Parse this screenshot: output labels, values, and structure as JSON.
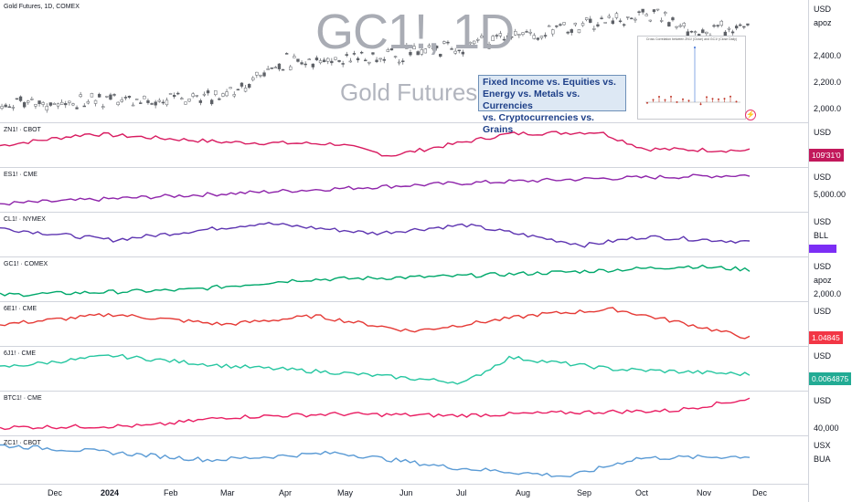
{
  "header": {
    "title": "Gold Futures, 1D, COMEX"
  },
  "watermark": {
    "symbol": "GC1!, 1D",
    "name": "Gold Futures"
  },
  "infobox": {
    "line1": "Fixed Income vs. Equities vs.",
    "line2": "Energy vs. Metals vs. Currencies",
    "line3": "vs. Cryptocurrencies vs. Grains"
  },
  "inset": {
    "title": "Cross Correlation between ZN1! (Close) and GC1! (Close Daily)"
  },
  "main_pane": {
    "currency": "USD",
    "unit": "apoz",
    "ticks": [
      "2,400.0",
      "2,200.0",
      "2,000.0"
    ]
  },
  "panes": [
    {
      "label": "ZN1! · CBOT",
      "currency": "USD",
      "price_tag": "109'31'0",
      "tag_color": "#c2185b",
      "line_color": "#d81b60"
    },
    {
      "label": "ES1! · CME",
      "currency": "USD",
      "tick": "5,000.00",
      "line_color": "#8e24aa"
    },
    {
      "label": "CL1! · NYMEX",
      "currency": "USD",
      "unit": "BLL",
      "line_color": "#5e35b1",
      "tag_color": "#7c2ef5"
    },
    {
      "label": "GC1! · COMEX",
      "currency": "USD",
      "unit": "apoz",
      "tick": "2,000.0",
      "line_color": "#00a86b"
    },
    {
      "label": "6E1! · CME",
      "currency": "USD",
      "price_tag": "1.04845",
      "tag_color": "#f23645",
      "line_color": "#e53935"
    },
    {
      "label": "6J1! · CME",
      "currency": "USD",
      "price_tag": "0.0064875",
      "tag_color": "#22ab94",
      "line_color": "#26c6a0"
    },
    {
      "label": "BTC1! · CME",
      "currency": "USD",
      "tick": "40,000",
      "line_color": "#e91e63"
    },
    {
      "label": "ZC1! · CBOT",
      "currency": "USX",
      "unit": "BUA",
      "line_color": "#5b9bd5"
    }
  ],
  "time_axis": [
    "Dec",
    "2024",
    "Feb",
    "Mar",
    "Apr",
    "May",
    "Jun",
    "Jul",
    "Aug",
    "Sep",
    "Oct",
    "Nov",
    "Dec"
  ]
}
